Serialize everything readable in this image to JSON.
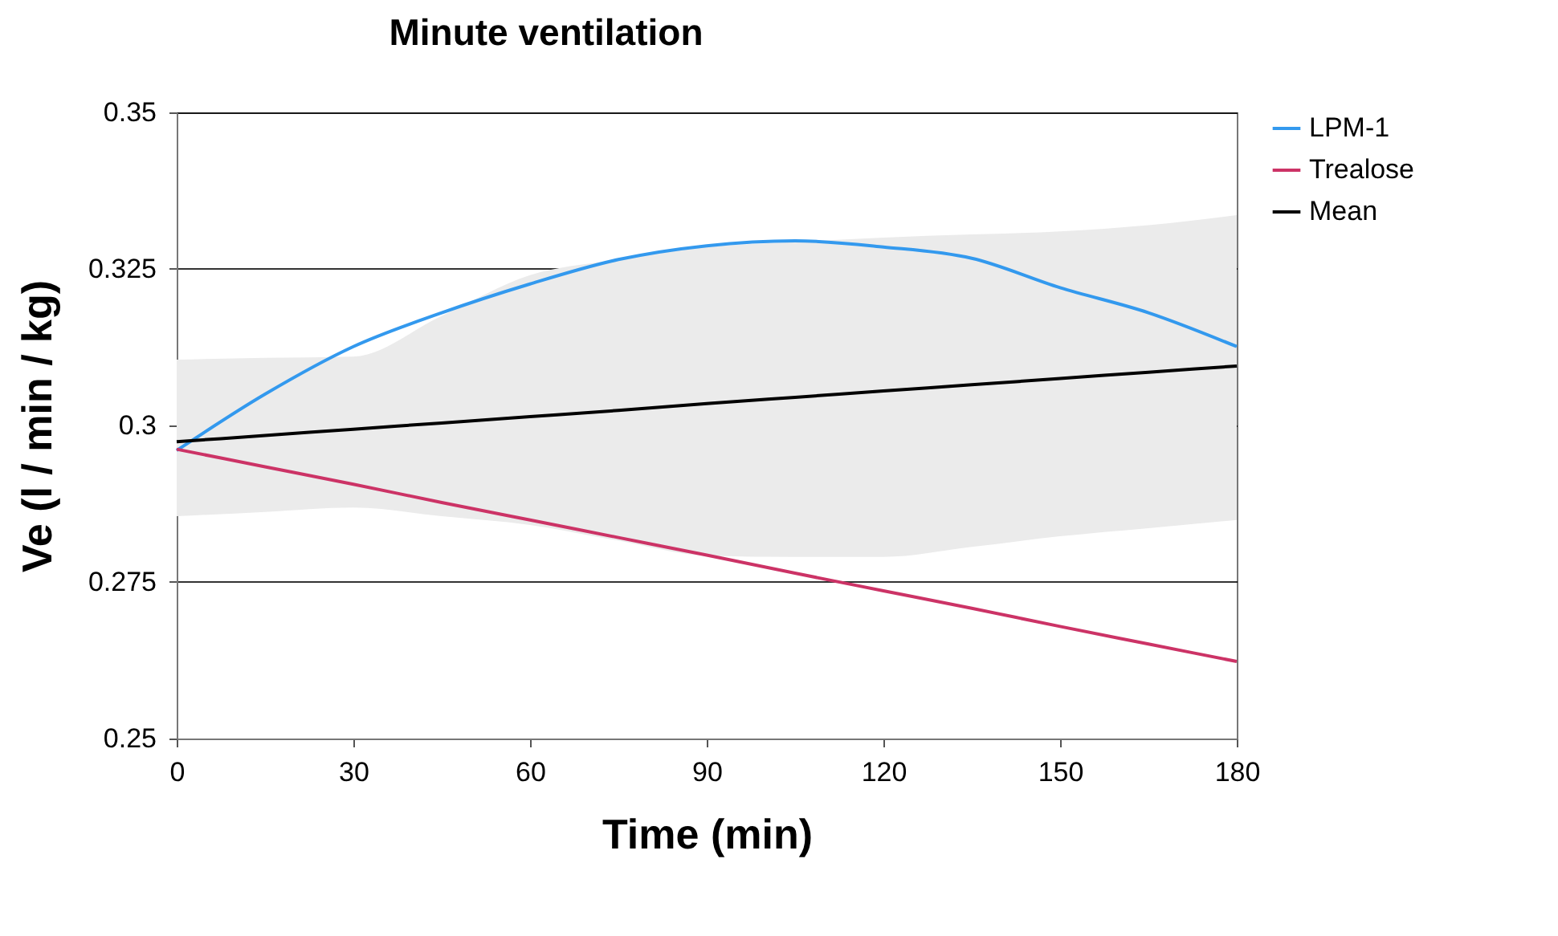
{
  "chart_data": {
    "type": "line",
    "title": "Minute ventilation",
    "xlabel": "Time (min)",
    "ylabel": "Ve (l / min / kg)",
    "x": [
      0,
      15,
      30,
      45,
      60,
      75,
      90,
      105,
      120,
      135,
      150,
      165,
      180
    ],
    "xlim": [
      0,
      180
    ],
    "xticks": [
      0,
      30,
      60,
      90,
      120,
      150,
      180
    ],
    "ylim": [
      0.25,
      0.35
    ],
    "yticks": [
      0.25,
      0.275,
      0.3,
      0.325,
      0.35
    ],
    "grid": "y",
    "legend": "right",
    "series": [
      {
        "name": "LPM-1",
        "color": "#3399ee",
        "values": [
          0.296,
          0.305,
          0.3126,
          0.318,
          0.3226,
          0.3265,
          0.3287,
          0.3295,
          0.3285,
          0.3267,
          0.322,
          0.318,
          0.3126
        ]
      },
      {
        "name": "Trealose",
        "color": "#cc3366",
        "values": [
          0.2962,
          0.2934,
          0.2906,
          0.2877,
          0.2849,
          0.2821,
          0.2793,
          0.2764,
          0.2736,
          0.2708,
          0.2679,
          0.2651,
          0.2623
        ]
      },
      {
        "name": "Mean",
        "color": "#000000",
        "values": [
          0.2974,
          0.2984,
          0.2994,
          0.3004,
          0.3014,
          0.3024,
          0.3035,
          0.3045,
          0.3055,
          0.3065,
          0.3075,
          0.3085,
          0.3095
        ],
        "lower": [
          0.2855,
          0.2862,
          0.2869,
          0.2855,
          0.2841,
          0.2816,
          0.2792,
          0.279,
          0.279,
          0.2806,
          0.2823,
          0.2836,
          0.2849
        ],
        "upper": [
          0.3105,
          0.3108,
          0.311,
          0.3175,
          0.324,
          0.3265,
          0.3285,
          0.3293,
          0.33,
          0.3305,
          0.331,
          0.332,
          0.3336
        ]
      }
    ]
  }
}
